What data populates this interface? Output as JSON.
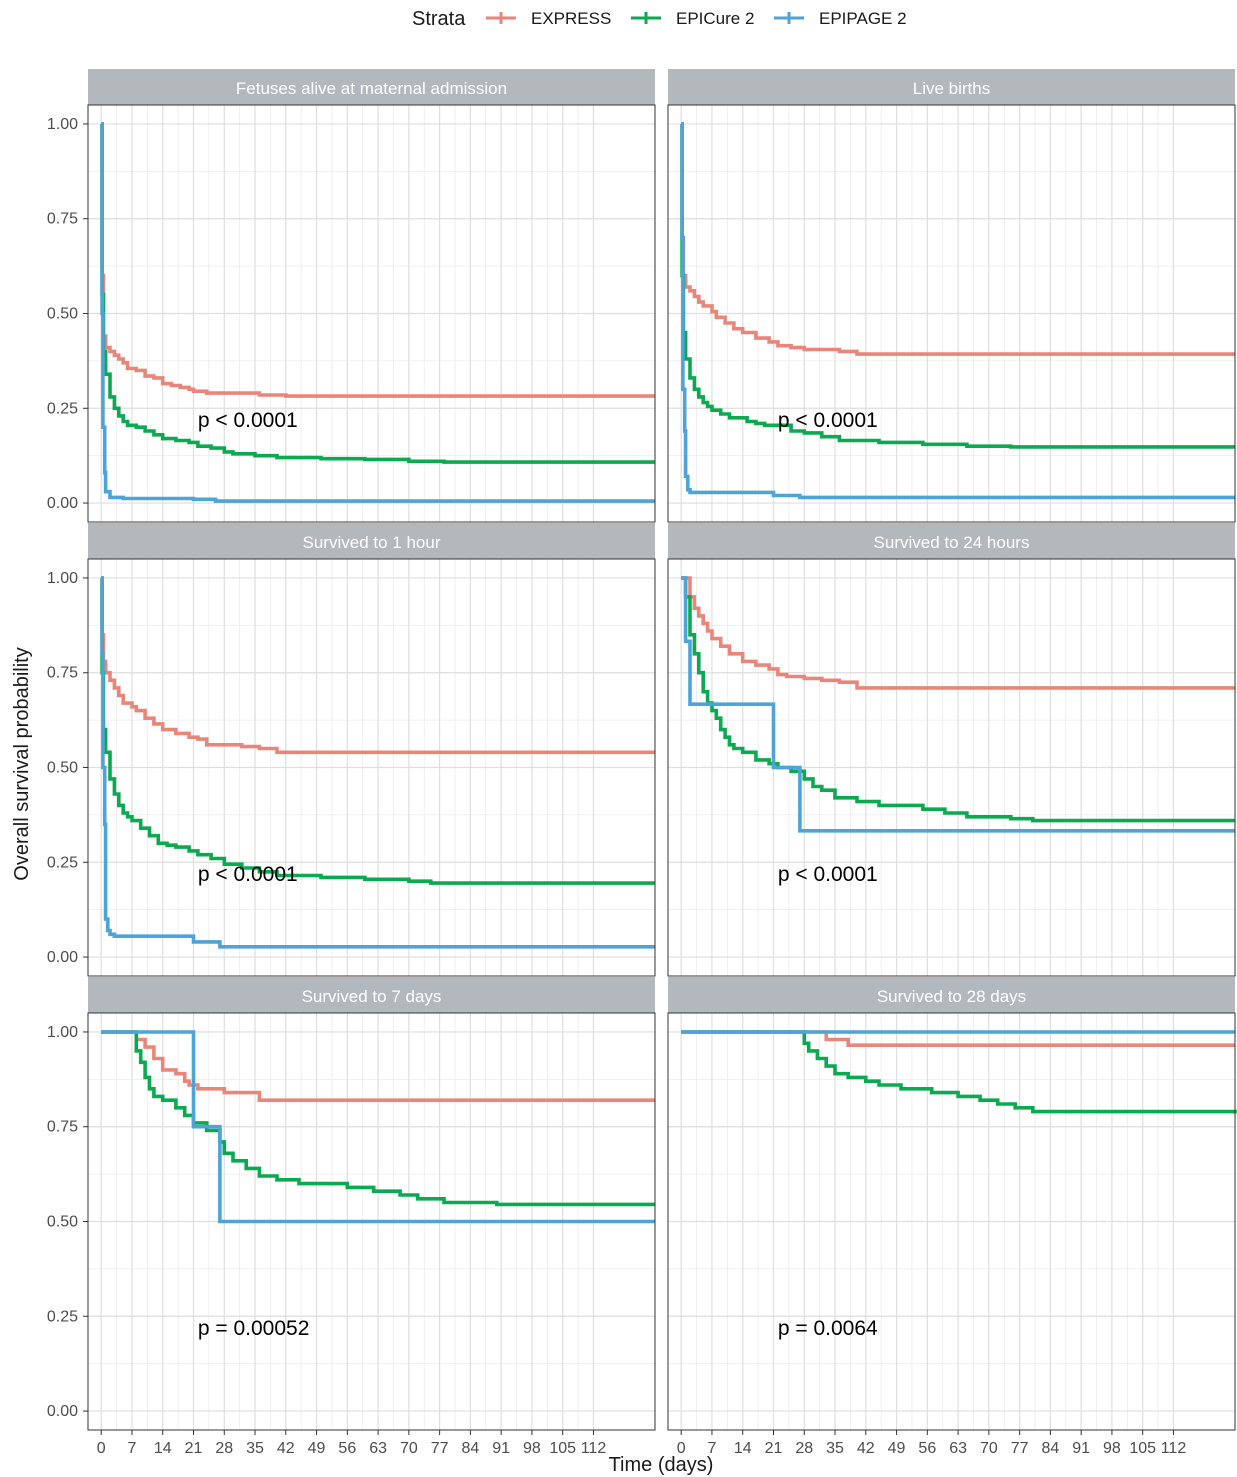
{
  "chart_data": {
    "type": "line",
    "subtype": "kaplan-meier step",
    "ylabel": "Overall survival probability",
    "xlabel": "Time (days)",
    "xlim": [
      -3,
      126
    ],
    "ylim": [
      -0.05,
      1.05
    ],
    "x_ticks": [
      "0",
      "7",
      "14",
      "21",
      "28",
      "35",
      "42",
      "49",
      "56",
      "63",
      "70",
      "77",
      "84",
      "91",
      "98",
      "105",
      "112"
    ],
    "x_tick_values": [
      0,
      7,
      14,
      21,
      28,
      35,
      42,
      49,
      56,
      63,
      70,
      77,
      84,
      91,
      98,
      105,
      112
    ],
    "y_ticks": [
      "0.00",
      "0.25",
      "0.50",
      "0.75",
      "1.00"
    ],
    "y_tick_values": [
      0,
      0.25,
      0.5,
      0.75,
      1
    ],
    "grid": true,
    "legend": {
      "title": "Strata",
      "position": "top",
      "entries": [
        {
          "name": "EXPRESS",
          "color": "#E9867A"
        },
        {
          "name": "EPICure 2",
          "color": "#0BAA50"
        },
        {
          "name": "EPIPAGE 2",
          "color": "#4EA3D8"
        }
      ]
    },
    "panels": [
      {
        "title": "Fetuses alive at maternal admission",
        "pvalue": "p < 0.0001",
        "pvalue_pos": [
          22,
          0.2
        ],
        "series": [
          {
            "name": "EXPRESS",
            "x": [
              0,
              0.2,
              0.5,
              1,
              2,
              3,
              4,
              5,
              6,
              8,
              10,
              12,
              14,
              16,
              18,
              20,
              21,
              24,
              28,
              36,
              42,
              126
            ],
            "y": [
              1,
              0.6,
              0.44,
              0.41,
              0.4,
              0.39,
              0.38,
              0.37,
              0.355,
              0.35,
              0.335,
              0.33,
              0.315,
              0.31,
              0.305,
              0.3,
              0.295,
              0.29,
              0.29,
              0.285,
              0.282,
              0.282
            ]
          },
          {
            "name": "EPICure 2",
            "x": [
              0,
              0.2,
              0.5,
              1,
              2,
              3,
              4,
              5,
              6,
              8,
              10,
              12,
              14,
              17,
              20,
              22,
              25,
              28,
              30,
              35,
              40,
              50,
              60,
              70,
              78,
              126
            ],
            "y": [
              1,
              0.55,
              0.4,
              0.34,
              0.28,
              0.25,
              0.23,
              0.215,
              0.205,
              0.2,
              0.19,
              0.18,
              0.17,
              0.165,
              0.16,
              0.15,
              0.145,
              0.135,
              0.13,
              0.125,
              0.12,
              0.117,
              0.115,
              0.11,
              0.108,
              0.108
            ]
          },
          {
            "name": "EPIPAGE 2",
            "x": [
              0,
              0.2,
              0.4,
              0.8,
              1,
              2,
              5,
              10,
              21,
              26,
              126
            ],
            "y": [
              1,
              0.5,
              0.2,
              0.08,
              0.03,
              0.015,
              0.012,
              0.012,
              0.01,
              0.005,
              0.005
            ]
          }
        ]
      },
      {
        "title": "Live births",
        "pvalue": "p < 0.0001",
        "pvalue_pos": [
          22,
          0.2
        ],
        "series": [
          {
            "name": "EXPRESS",
            "x": [
              0,
              0.2,
              0.5,
              1,
              2,
              3,
              4,
              5,
              7,
              8,
              10,
              12,
              14,
              17,
              20,
              22,
              25,
              28,
              32,
              36,
              40,
              126
            ],
            "y": [
              1,
              0.7,
              0.6,
              0.57,
              0.56,
              0.545,
              0.53,
              0.52,
              0.505,
              0.49,
              0.475,
              0.46,
              0.45,
              0.435,
              0.425,
              0.415,
              0.41,
              0.405,
              0.405,
              0.4,
              0.393,
              0.393
            ]
          },
          {
            "name": "EPICure 2",
            "x": [
              0,
              0.2,
              0.5,
              1,
              2,
              3,
              4,
              5,
              6,
              7,
              9,
              11,
              13,
              15,
              17,
              19,
              21,
              25,
              28,
              32,
              36,
              45,
              55,
              65,
              75,
              80,
              126
            ],
            "y": [
              1,
              0.6,
              0.45,
              0.38,
              0.33,
              0.3,
              0.28,
              0.265,
              0.255,
              0.245,
              0.235,
              0.225,
              0.225,
              0.215,
              0.21,
              0.205,
              0.205,
              0.19,
              0.185,
              0.175,
              0.165,
              0.16,
              0.155,
              0.15,
              0.148,
              0.148,
              0.148
            ]
          },
          {
            "name": "EPIPAGE 2",
            "x": [
              0,
              0.2,
              0.4,
              0.8,
              1,
              1.5,
              2,
              5,
              21,
              27,
              126
            ],
            "y": [
              1,
              0.7,
              0.3,
              0.19,
              0.07,
              0.035,
              0.028,
              0.028,
              0.02,
              0.015,
              0.015
            ]
          }
        ]
      },
      {
        "title": "Survived to 1 hour",
        "pvalue": "p < 0.0001",
        "pvalue_pos": [
          22,
          0.2
        ],
        "series": [
          {
            "name": "EXPRESS",
            "x": [
              0,
              0.2,
              0.5,
              1,
              2,
              3,
              4,
              5,
              7,
              8,
              10,
              12,
              14,
              17,
              20,
              22,
              24,
              28,
              32,
              36,
              40,
              126
            ],
            "y": [
              1,
              0.85,
              0.78,
              0.75,
              0.73,
              0.71,
              0.69,
              0.67,
              0.66,
              0.65,
              0.63,
              0.615,
              0.6,
              0.59,
              0.58,
              0.575,
              0.56,
              0.56,
              0.555,
              0.55,
              0.54,
              0.54
            ]
          },
          {
            "name": "EPICure 2",
            "x": [
              0,
              0.2,
              0.5,
              1,
              2,
              3,
              4,
              5,
              6,
              7,
              9,
              11,
              13,
              15,
              17,
              20,
              22,
              25,
              28,
              32,
              36,
              40,
              50,
              60,
              70,
              75,
              126
            ],
            "y": [
              1,
              0.75,
              0.6,
              0.54,
              0.47,
              0.43,
              0.4,
              0.38,
              0.37,
              0.36,
              0.34,
              0.32,
              0.3,
              0.295,
              0.29,
              0.28,
              0.27,
              0.26,
              0.245,
              0.235,
              0.225,
              0.215,
              0.21,
              0.205,
              0.2,
              0.195,
              0.195
            ]
          },
          {
            "name": "EPIPAGE 2",
            "x": [
              0,
              0.2,
              0.4,
              0.8,
              1,
              1.5,
              2,
              3,
              21,
              27,
              126
            ],
            "y": [
              1,
              0.8,
              0.5,
              0.35,
              0.1,
              0.07,
              0.06,
              0.055,
              0.04,
              0.027,
              0.027
            ]
          }
        ]
      },
      {
        "title": "Survived to 24 hours",
        "pvalue": "p < 0.0001",
        "pvalue_pos": [
          22,
          0.2
        ],
        "series": [
          {
            "name": "EXPRESS",
            "x": [
              0,
              2,
              3,
              4,
              5,
              6,
              7,
              9,
              11,
              14,
              17,
              20,
              22,
              24,
              28,
              32,
              36,
              40,
              126
            ],
            "y": [
              1,
              0.95,
              0.92,
              0.9,
              0.88,
              0.86,
              0.84,
              0.82,
              0.8,
              0.78,
              0.77,
              0.76,
              0.745,
              0.74,
              0.735,
              0.73,
              0.725,
              0.71,
              0.71
            ]
          },
          {
            "name": "EPICure 2",
            "x": [
              0,
              1,
              2,
              3,
              4,
              5,
              6,
              7,
              8,
              9,
              10,
              11,
              12,
              14,
              17,
              20,
              22,
              25,
              28,
              30,
              32,
              35,
              40,
              45,
              55,
              60,
              65,
              75,
              80,
              126
            ],
            "y": [
              1,
              0.95,
              0.85,
              0.8,
              0.75,
              0.7,
              0.67,
              0.65,
              0.63,
              0.6,
              0.58,
              0.56,
              0.55,
              0.54,
              0.52,
              0.51,
              0.5,
              0.49,
              0.47,
              0.45,
              0.44,
              0.42,
              0.41,
              0.4,
              0.39,
              0.38,
              0.37,
              0.365,
              0.36,
              0.36
            ]
          },
          {
            "name": "EPIPAGE 2",
            "x": [
              0,
              1,
              2,
              21,
              27,
              126
            ],
            "y": [
              1,
              0.833,
              0.667,
              0.5,
              0.333,
              0.333
            ]
          }
        ]
      },
      {
        "title": "Survived to 7 days",
        "pvalue": "p = 0.00052",
        "pvalue_pos": [
          22,
          0.2
        ],
        "series": [
          {
            "name": "EXPRESS",
            "x": [
              0,
              7,
              8,
              10,
              12,
              14,
              17,
              19,
              20,
              22,
              28,
              36,
              126
            ],
            "y": [
              1,
              1,
              0.98,
              0.96,
              0.93,
              0.9,
              0.89,
              0.87,
              0.86,
              0.85,
              0.84,
              0.82,
              0.82
            ]
          },
          {
            "name": "EPICure 2",
            "x": [
              0,
              7,
              8,
              9,
              10,
              11,
              12,
              14,
              17,
              19,
              21,
              24,
              27,
              28,
              30,
              33,
              36,
              40,
              45,
              50,
              56,
              62,
              68,
              72,
              78,
              90,
              126
            ],
            "y": [
              1,
              1,
              0.95,
              0.92,
              0.88,
              0.85,
              0.83,
              0.82,
              0.8,
              0.78,
              0.76,
              0.74,
              0.71,
              0.68,
              0.66,
              0.64,
              0.62,
              0.61,
              0.6,
              0.6,
              0.59,
              0.58,
              0.57,
              0.56,
              0.55,
              0.545,
              0.545
            ]
          },
          {
            "name": "EPIPAGE 2",
            "x": [
              0,
              21,
              27,
              126
            ],
            "y": [
              1,
              0.75,
              0.5,
              0.5
            ]
          }
        ]
      },
      {
        "title": "Survived to 28 days",
        "pvalue": "p = 0.0064",
        "pvalue_pos": [
          22,
          0.2
        ],
        "series": [
          {
            "name": "EXPRESS",
            "x": [
              0,
              33,
              38,
              126
            ],
            "y": [
              1,
              0.98,
              0.965,
              0.965
            ]
          },
          {
            "name": "EPICure 2",
            "x": [
              0,
              28,
              29,
              31,
              33,
              35,
              38,
              42,
              45,
              50,
              57,
              63,
              68,
              72,
              76,
              80,
              126
            ],
            "y": [
              1,
              0.97,
              0.95,
              0.93,
              0.91,
              0.89,
              0.88,
              0.87,
              0.86,
              0.85,
              0.84,
              0.83,
              0.82,
              0.81,
              0.8,
              0.79,
              0.785
            ]
          },
          {
            "name": "EPIPAGE 2",
            "x": [
              0,
              126
            ],
            "y": [
              1,
              1
            ]
          }
        ]
      }
    ]
  }
}
